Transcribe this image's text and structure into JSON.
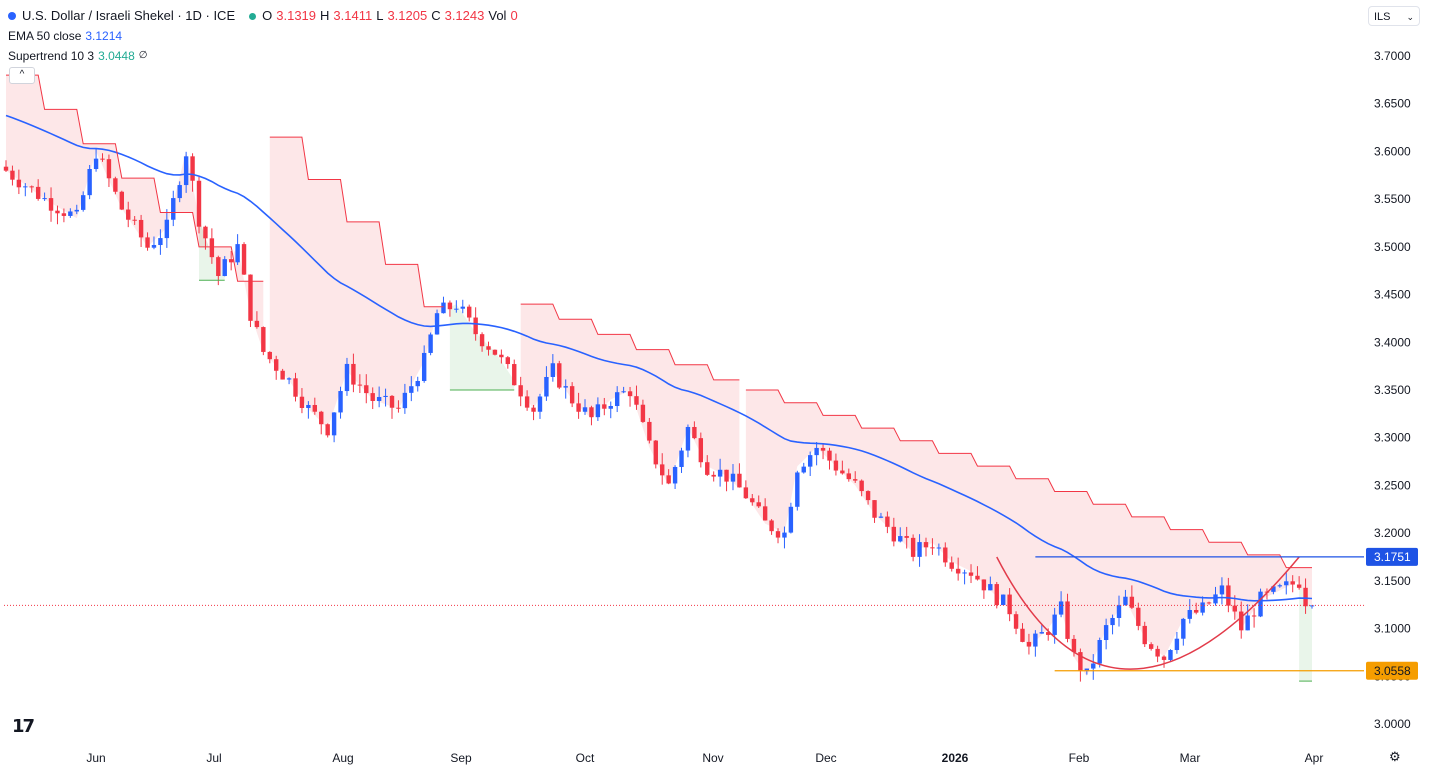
{
  "header": {
    "symbol_title": "U.S. Dollar / Israeli Shekel · 1D · ICE",
    "ohlc": [
      {
        "label": "O",
        "value": "3.1319"
      },
      {
        "label": "H",
        "value": "3.1411"
      },
      {
        "label": "L",
        "value": "3.1205"
      },
      {
        "label": "C",
        "value": "3.1243"
      },
      {
        "label": "Vol",
        "value": "0"
      }
    ],
    "ema_label": "EMA 50 close",
    "ema_value": "3.1214",
    "supertrend_label": "Supertrend 10 3",
    "supertrend_value": "3.0448",
    "supertrend_suffix": "∅",
    "collapse_glyph": "^",
    "currency": "ILS",
    "currency_chevron": "⌄"
  },
  "colors": {
    "up": "#2962ff",
    "down": "#f23645",
    "ema": "#2962ff",
    "supertrend_down": "#f23645",
    "supertrend_up": "#4caf50",
    "resistance": "#1e53e5",
    "support": "#f59d00",
    "grid_text": "#131722"
  },
  "chart_data": {
    "type": "candlestick",
    "y_axis_ticks": [
      "3.7000",
      "3.6500",
      "3.6000",
      "3.5500",
      "3.5000",
      "3.4500",
      "3.4000",
      "3.3500",
      "3.3000",
      "3.2500",
      "3.2000",
      "3.1500",
      "3.1000",
      "3.0500",
      "3.0000"
    ],
    "ylim": [
      2.995,
      3.725
    ],
    "x_axis_ticks": [
      {
        "label": "Jun",
        "bold": false
      },
      {
        "label": "Jul",
        "bold": false
      },
      {
        "label": "Aug",
        "bold": false
      },
      {
        "label": "Sep",
        "bold": false
      },
      {
        "label": "Oct",
        "bold": false
      },
      {
        "label": "Nov",
        "bold": false
      },
      {
        "label": "Dec",
        "bold": false
      },
      {
        "label": "2026",
        "bold": true
      },
      {
        "label": "Feb",
        "bold": false
      },
      {
        "label": "Mar",
        "bold": false
      },
      {
        "label": "Apr",
        "bold": false
      }
    ],
    "last_price": 3.1243,
    "resistance": {
      "value": 3.1751,
      "label": "3.1751"
    },
    "support": {
      "value": 3.0558,
      "label": "3.0558"
    },
    "price_path": [
      [
        0,
        3.58
      ],
      [
        6,
        3.55
      ],
      [
        11,
        3.53
      ],
      [
        14,
        3.6
      ],
      [
        18,
        3.54
      ],
      [
        22,
        3.5
      ],
      [
        25,
        3.52
      ],
      [
        28,
        3.6
      ],
      [
        30,
        3.53
      ],
      [
        33,
        3.47
      ],
      [
        36,
        3.5
      ],
      [
        38,
        3.43
      ],
      [
        40,
        3.39
      ],
      [
        44,
        3.36
      ],
      [
        47,
        3.33
      ],
      [
        50,
        3.31
      ],
      [
        53,
        3.37
      ],
      [
        57,
        3.34
      ],
      [
        61,
        3.33
      ],
      [
        65,
        3.38
      ],
      [
        67,
        3.43
      ],
      [
        70,
        3.44
      ],
      [
        73,
        3.41
      ],
      [
        76,
        3.39
      ],
      [
        79,
        3.36
      ],
      [
        82,
        3.33
      ],
      [
        85,
        3.37
      ],
      [
        88,
        3.34
      ],
      [
        91,
        3.32
      ],
      [
        94,
        3.34
      ],
      [
        97,
        3.35
      ],
      [
        100,
        3.29
      ],
      [
        103,
        3.25
      ],
      [
        106,
        3.31
      ],
      [
        109,
        3.27
      ],
      [
        112,
        3.26
      ],
      [
        115,
        3.24
      ],
      [
        118,
        3.21
      ],
      [
        121,
        3.2
      ],
      [
        123,
        3.27
      ],
      [
        126,
        3.29
      ],
      [
        129,
        3.27
      ],
      [
        132,
        3.25
      ],
      [
        135,
        3.22
      ],
      [
        138,
        3.2
      ],
      [
        141,
        3.18
      ],
      [
        144,
        3.19
      ],
      [
        147,
        3.17
      ],
      [
        150,
        3.16
      ],
      [
        153,
        3.14
      ],
      [
        156,
        3.12
      ],
      [
        159,
        3.08
      ],
      [
        162,
        3.1
      ],
      [
        164,
        3.12
      ],
      [
        166,
        3.07
      ],
      [
        168,
        3.05
      ],
      [
        171,
        3.1
      ],
      [
        174,
        3.13
      ],
      [
        177,
        3.09
      ],
      [
        180,
        3.07
      ],
      [
        183,
        3.11
      ],
      [
        186,
        3.12
      ],
      [
        189,
        3.14
      ],
      [
        192,
        3.1
      ],
      [
        195,
        3.13
      ],
      [
        198,
        3.14
      ],
      [
        201,
        3.15
      ],
      [
        202,
        3.13
      ],
      [
        203,
        3.1243
      ]
    ],
    "supertrend_down_segments": [
      {
        "x": [
          0,
          40
        ],
        "y": [
          3.68,
          3.44
        ]
      },
      {
        "x": [
          41,
          68
        ],
        "y": [
          3.615,
          3.415
        ]
      },
      {
        "x": [
          80,
          114
        ],
        "y": [
          3.44,
          3.35
        ]
      },
      {
        "x": [
          115,
          203
        ],
        "y": [
          3.35,
          3.155
        ]
      }
    ],
    "supertrend_up_segments": [
      {
        "x": [
          30,
          34
        ],
        "y": [
          3.465,
          3.465
        ]
      },
      {
        "x": [
          69,
          79
        ],
        "y": [
          3.35,
          3.35
        ]
      },
      {
        "x": [
          201,
          203
        ],
        "y": [
          3.045,
          3.045
        ]
      }
    ]
  }
}
